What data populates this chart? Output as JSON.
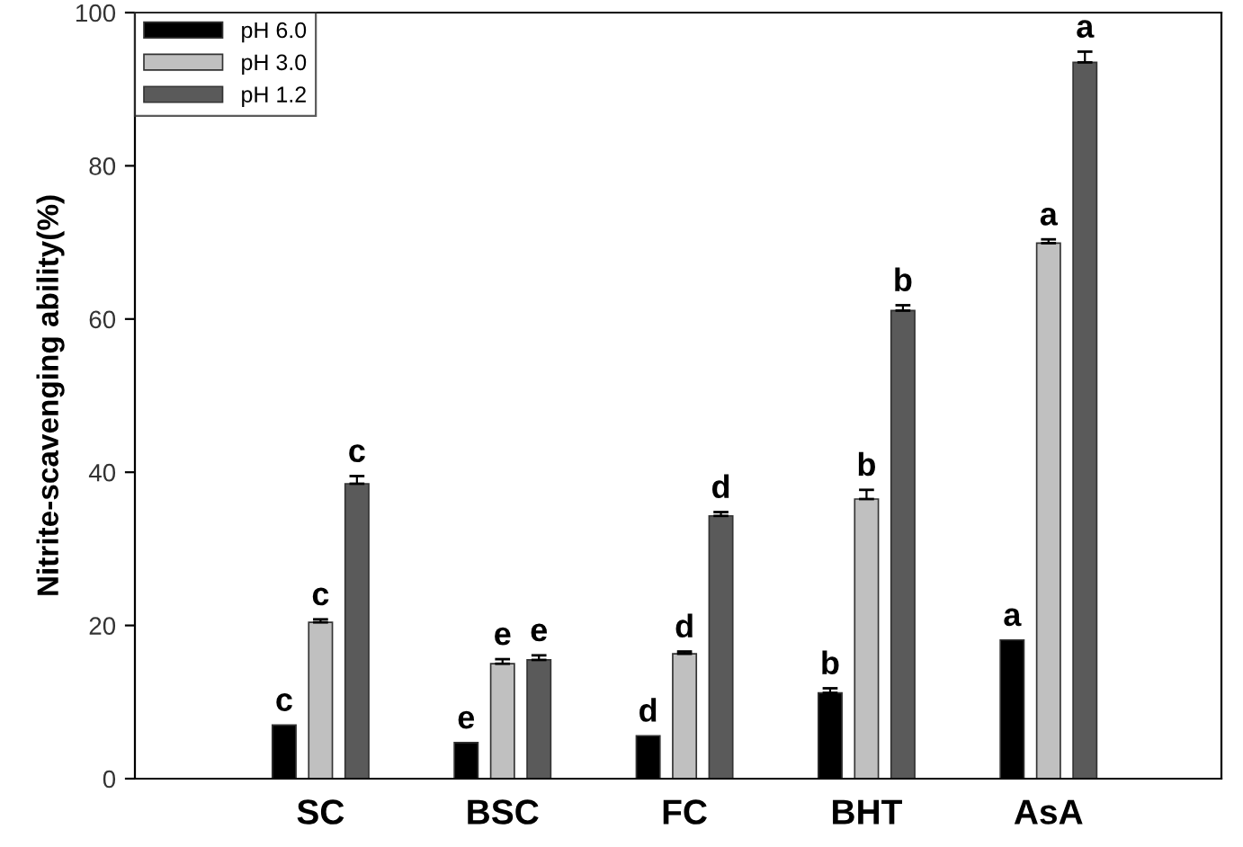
{
  "chart_data": {
    "type": "bar",
    "ylabel": "Nitrite-scavenging ability(%)",
    "categories": [
      "SC",
      "BSC",
      "FC",
      "BHT",
      "AsA"
    ],
    "series": [
      {
        "name": "pH 6.0",
        "color": "#000000",
        "values": [
          7.0,
          4.7,
          5.6,
          11.2,
          18.1
        ],
        "errors": [
          null,
          null,
          null,
          0.6,
          null
        ],
        "value_labels": [
          "c",
          "e",
          "d",
          "b",
          "a"
        ]
      },
      {
        "name": "pH 3.0",
        "color": "#c0c0c0",
        "values": [
          20.4,
          15.0,
          16.3,
          36.5,
          69.9
        ],
        "errors": [
          0.4,
          0.6,
          0.3,
          1.2,
          0.5
        ],
        "value_labels": [
          "c",
          "e",
          "d",
          "b",
          "a"
        ]
      },
      {
        "name": "pH 1.2",
        "color": "#5a5a5a",
        "values": [
          38.5,
          15.5,
          34.3,
          61.1,
          93.5
        ],
        "errors": [
          1.0,
          0.6,
          0.5,
          0.7,
          1.4
        ],
        "value_labels": [
          "c",
          "e",
          "d",
          "b",
          "a"
        ]
      }
    ],
    "ylim": [
      0,
      100
    ],
    "yticks": [
      0,
      20,
      40,
      60,
      80,
      100
    ],
    "grid": false,
    "legend": "top left"
  }
}
